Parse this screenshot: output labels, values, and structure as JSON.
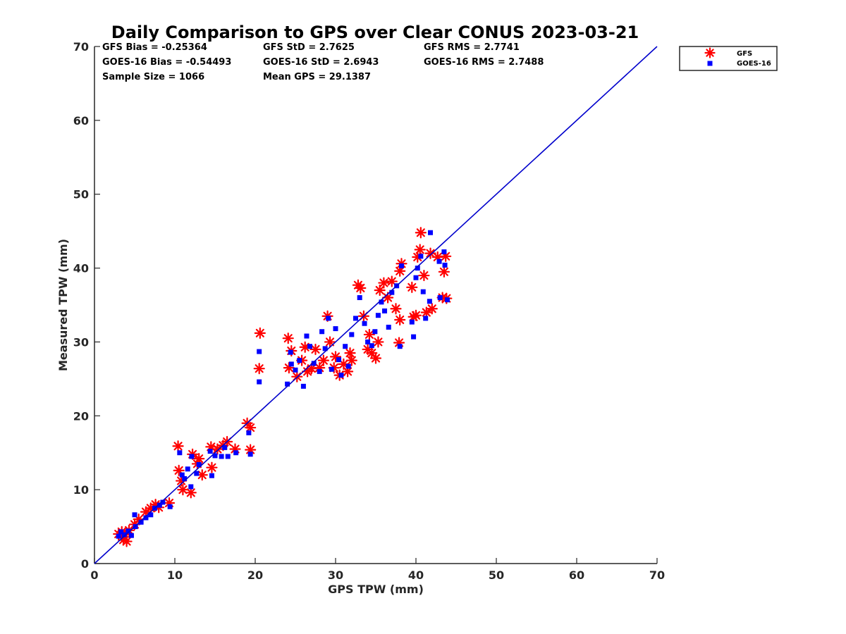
{
  "colors": {
    "gfs": "#ff0000",
    "goes": "#0000ff",
    "line": "#0000cc",
    "axis": "#262626",
    "background": "#ffffff"
  },
  "chart_data": {
    "type": "scatter",
    "title": "Daily Comparison to GPS over Clear CONUS 2023-03-21",
    "xlabel": "GPS TPW (mm)",
    "ylabel": "Measured TPW (mm)",
    "xlim": [
      0,
      70
    ],
    "ylim": [
      0,
      70
    ],
    "xticks": [
      "0",
      "10",
      "20",
      "30",
      "40",
      "50",
      "60",
      "70"
    ],
    "yticks": [
      "0",
      "10",
      "20",
      "30",
      "40",
      "50",
      "60",
      "70"
    ],
    "grid": false,
    "legend_position": "outside top-right",
    "legend": [
      {
        "name": "GFS",
        "marker": "asterisk",
        "color": "#ff0000"
      },
      {
        "name": "GOES-16",
        "marker": "square",
        "color": "#0000ff"
      }
    ],
    "stats": {
      "gfs_bias": "GFS Bias = -0.25364",
      "gfs_std": "GFS StD = 2.7625",
      "gfs_rms": "GFS RMS = 2.7741",
      "goes_bias": "GOES-16 Bias = -0.54493",
      "goes_std": "GOES-16 StD = 2.6943",
      "goes_rms": "GOES-16 RMS = 2.7488",
      "sample_size": "Sample Size = 1066",
      "mean_gps": "Mean GPS = 29.1387"
    },
    "reference_line": {
      "name": "1:1 line",
      "from": [
        0,
        0
      ],
      "to": [
        70,
        70
      ]
    },
    "series": [
      {
        "name": "GFS",
        "marker": "asterisk",
        "points": [
          [
            3.0,
            4.0
          ],
          [
            3.4,
            4.3
          ],
          [
            3.8,
            3.6
          ],
          [
            4.0,
            3.0
          ],
          [
            4.3,
            4.5
          ],
          [
            3.6,
            3.2
          ],
          [
            5.0,
            5.3
          ],
          [
            5.5,
            6.0
          ],
          [
            6.4,
            7.0
          ],
          [
            7.0,
            7.5
          ],
          [
            7.6,
            8.0
          ],
          [
            8.0,
            7.6
          ],
          [
            9.3,
            8.2
          ],
          [
            10.4,
            15.9
          ],
          [
            10.5,
            12.6
          ],
          [
            10.8,
            11.2
          ],
          [
            11.0,
            10.0
          ],
          [
            12.0,
            9.6
          ],
          [
            12.2,
            14.8
          ],
          [
            12.8,
            13.5
          ],
          [
            13.0,
            14.2
          ],
          [
            13.4,
            12.0
          ],
          [
            14.5,
            15.8
          ],
          [
            14.6,
            13.0
          ],
          [
            15.3,
            15.5
          ],
          [
            16.0,
            16.0
          ],
          [
            16.5,
            16.5
          ],
          [
            17.5,
            15.5
          ],
          [
            19.0,
            19.0
          ],
          [
            19.4,
            18.4
          ],
          [
            19.4,
            15.4
          ],
          [
            20.6,
            31.2
          ],
          [
            20.5,
            26.4
          ],
          [
            24.1,
            30.5
          ],
          [
            24.5,
            28.8
          ],
          [
            24.2,
            26.5
          ],
          [
            25.2,
            25.3
          ],
          [
            25.8,
            27.5
          ],
          [
            26.2,
            29.3
          ],
          [
            26.5,
            26.0
          ],
          [
            27.0,
            26.4
          ],
          [
            27.5,
            29.0
          ],
          [
            28.0,
            26.5
          ],
          [
            28.5,
            27.5
          ],
          [
            29.0,
            33.5
          ],
          [
            29.3,
            30.0
          ],
          [
            29.8,
            26.5
          ],
          [
            30.0,
            28.0
          ],
          [
            30.5,
            25.5
          ],
          [
            31.0,
            27.0
          ],
          [
            31.5,
            26.0
          ],
          [
            31.8,
            28.5
          ],
          [
            32.0,
            27.5
          ],
          [
            32.8,
            37.7
          ],
          [
            33.1,
            37.3
          ],
          [
            33.5,
            33.5
          ],
          [
            34.0,
            29.0
          ],
          [
            34.2,
            31.0
          ],
          [
            34.5,
            28.5
          ],
          [
            35.0,
            27.8
          ],
          [
            35.3,
            30.0
          ],
          [
            35.5,
            37.0
          ],
          [
            36.0,
            38.0
          ],
          [
            36.5,
            36.0
          ],
          [
            37.0,
            38.2
          ],
          [
            37.5,
            34.5
          ],
          [
            37.9,
            29.9
          ],
          [
            38.0,
            39.6
          ],
          [
            38.2,
            40.6
          ],
          [
            38.0,
            33.0
          ],
          [
            39.5,
            37.4
          ],
          [
            39.7,
            33.4
          ],
          [
            40.0,
            33.6
          ],
          [
            40.2,
            41.5
          ],
          [
            40.5,
            42.5
          ],
          [
            40.6,
            44.8
          ],
          [
            41.0,
            39.0
          ],
          [
            41.3,
            34.0
          ],
          [
            41.8,
            42.0
          ],
          [
            42.0,
            34.5
          ],
          [
            42.7,
            41.5
          ],
          [
            43.3,
            36.0
          ],
          [
            43.5,
            39.5
          ],
          [
            43.7,
            41.6
          ],
          [
            43.8,
            35.9
          ]
        ]
      },
      {
        "name": "GOES-16",
        "marker": "square",
        "points": [
          [
            3.0,
            3.7
          ],
          [
            3.3,
            4.3
          ],
          [
            3.7,
            3.9
          ],
          [
            4.2,
            4.4
          ],
          [
            4.6,
            3.8
          ],
          [
            5.0,
            6.6
          ],
          [
            5.1,
            5.0
          ],
          [
            5.8,
            5.6
          ],
          [
            6.4,
            6.2
          ],
          [
            7.0,
            6.6
          ],
          [
            7.5,
            7.5
          ],
          [
            8.1,
            7.9
          ],
          [
            8.5,
            8.3
          ],
          [
            9.4,
            7.7
          ],
          [
            10.6,
            15.0
          ],
          [
            10.9,
            12.0
          ],
          [
            11.2,
            11.5
          ],
          [
            11.6,
            12.8
          ],
          [
            12.0,
            10.4
          ],
          [
            12.1,
            14.5
          ],
          [
            12.7,
            12.2
          ],
          [
            13.0,
            13.4
          ],
          [
            14.4,
            15.2
          ],
          [
            14.6,
            11.9
          ],
          [
            15.0,
            14.6
          ],
          [
            15.8,
            14.5
          ],
          [
            16.2,
            15.7
          ],
          [
            16.6,
            14.5
          ],
          [
            17.6,
            15.0
          ],
          [
            19.2,
            17.7
          ],
          [
            19.4,
            14.8
          ],
          [
            20.5,
            28.7
          ],
          [
            20.5,
            24.6
          ],
          [
            24.0,
            24.3
          ],
          [
            24.4,
            28.6
          ],
          [
            24.5,
            27.0
          ],
          [
            25.0,
            26.2
          ],
          [
            25.5,
            27.5
          ],
          [
            26.0,
            24.0
          ],
          [
            26.4,
            30.8
          ],
          [
            26.8,
            29.4
          ],
          [
            27.3,
            27.1
          ],
          [
            28.0,
            26.0
          ],
          [
            28.3,
            31.4
          ],
          [
            28.7,
            29.1
          ],
          [
            29.1,
            33.2
          ],
          [
            29.5,
            26.3
          ],
          [
            30.0,
            31.8
          ],
          [
            30.4,
            27.6
          ],
          [
            30.7,
            25.5
          ],
          [
            31.2,
            29.4
          ],
          [
            31.6,
            26.7
          ],
          [
            32.0,
            31.0
          ],
          [
            32.5,
            33.2
          ],
          [
            33.0,
            36.0
          ],
          [
            33.6,
            32.5
          ],
          [
            34.0,
            30.0
          ],
          [
            34.5,
            29.5
          ],
          [
            34.9,
            31.4
          ],
          [
            35.3,
            33.6
          ],
          [
            35.7,
            35.4
          ],
          [
            36.1,
            34.2
          ],
          [
            36.6,
            32.0
          ],
          [
            37.0,
            36.7
          ],
          [
            37.6,
            37.6
          ],
          [
            38.0,
            29.4
          ],
          [
            38.2,
            40.3
          ],
          [
            39.5,
            32.7
          ],
          [
            39.7,
            30.7
          ],
          [
            40.0,
            38.7
          ],
          [
            40.2,
            40.0
          ],
          [
            40.6,
            41.6
          ],
          [
            40.9,
            36.8
          ],
          [
            41.2,
            33.2
          ],
          [
            41.7,
            35.5
          ],
          [
            41.8,
            44.8
          ],
          [
            42.9,
            40.9
          ],
          [
            43.0,
            36.0
          ],
          [
            43.6,
            40.4
          ],
          [
            43.5,
            42.2
          ],
          [
            43.9,
            35.7
          ]
        ]
      }
    ]
  }
}
